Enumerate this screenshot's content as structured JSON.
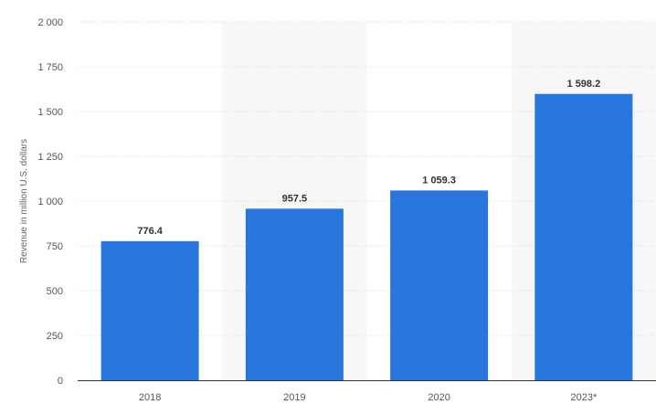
{
  "chart_data": {
    "type": "bar",
    "categories": [
      "2018",
      "2019",
      "2020",
      "2023*"
    ],
    "values": [
      776.4,
      957.5,
      1059.3,
      1598.2
    ],
    "value_labels": [
      "776.4",
      "957.5",
      "1 059.3",
      "1 598.2"
    ],
    "ylabel": "Revenue in million U.S. dollars",
    "xlabel": "",
    "title": "",
    "ylim": [
      0,
      2000
    ],
    "yticks": [
      0,
      250,
      500,
      750,
      1000,
      1250,
      1500,
      1750,
      2000
    ],
    "ytick_labels": [
      "0",
      "250",
      "500",
      "750",
      "1 000",
      "1 250",
      "1 500",
      "1 750",
      "2 000"
    ],
    "grid": true,
    "legend": "none",
    "colors": {
      "bar": "#2876dd",
      "grid": "#d8d8d8",
      "band": "#f7f7f7",
      "axis": "#333333"
    }
  }
}
